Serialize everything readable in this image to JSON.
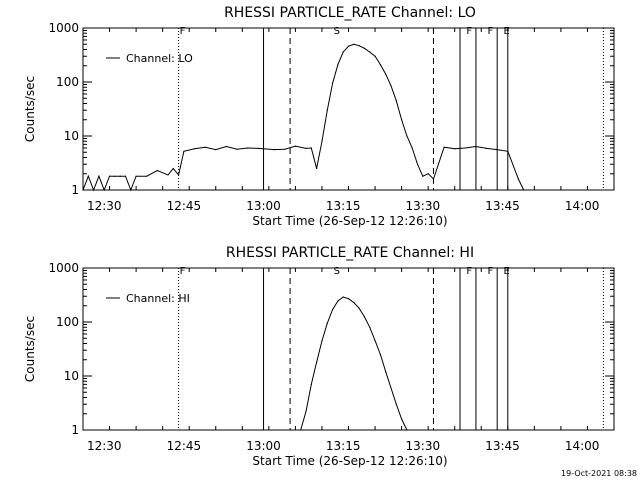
{
  "chart_data": [
    {
      "type": "line",
      "title": "RHESSI PARTICLE_RATE Channel: LO",
      "xlabel": "Start Time (26-Sep-12 12:26:10)",
      "ylabel": "Counts/sec",
      "y_scale": "log",
      "ylim": [
        1,
        1000
      ],
      "xlim": [
        "12:26",
        "14:06"
      ],
      "x_ticks": [
        "12:30",
        "12:45",
        "13:00",
        "13:15",
        "13:30",
        "13:45",
        "14:00"
      ],
      "y_ticks": [
        "1",
        "10",
        "100",
        "1000"
      ],
      "legend": {
        "label": "Channel: LO",
        "position": "top-left"
      },
      "flags": [
        {
          "label": "F",
          "time": "12:44"
        },
        {
          "label": "S",
          "time": "13:13"
        },
        {
          "label": "F",
          "time": "13:38"
        },
        {
          "label": "F",
          "time": "13:42"
        },
        {
          "label": "E",
          "time": "13:45"
        }
      ],
      "series": [
        {
          "x": [
            "12:26",
            "12:27",
            "12:28",
            "12:29",
            "12:30",
            "12:31",
            "12:32",
            "12:33",
            "12:34",
            "12:35",
            "12:36",
            "12:38",
            "12:40",
            "12:42",
            "12:43",
            "12:44",
            "12:45",
            "12:47",
            "12:49",
            "12:51",
            "12:53",
            "12:55",
            "12:57",
            "12:59",
            "13:00",
            "13:02",
            "13:04",
            "13:06",
            "13:08",
            "13:09",
            "13:10",
            "13:11",
            "13:12",
            "13:13",
            "13:14",
            "13:15",
            "13:16",
            "13:17",
            "13:18",
            "13:19",
            "13:20",
            "13:21",
            "13:22",
            "13:23",
            "13:24",
            "13:25",
            "13:26",
            "13:27",
            "13:28",
            "13:29",
            "13:30",
            "13:31",
            "13:32",
            "13:34",
            "13:36",
            "13:38",
            "13:40",
            "13:42",
            "13:44",
            "13:46",
            "13:48",
            "13:49"
          ],
          "y": [
            1.0,
            1.8,
            1.0,
            1.8,
            1.0,
            1.8,
            1.8,
            1.8,
            1.8,
            1.0,
            1.8,
            1.8,
            2.3,
            1.9,
            2.5,
            1.9,
            5.2,
            5.8,
            6.2,
            5.6,
            6.4,
            5.7,
            6.0,
            5.9,
            5.8,
            5.6,
            5.7,
            6.5,
            5.9,
            6.0,
            2.5,
            8.0,
            30,
            95,
            210,
            360,
            460,
            500,
            470,
            420,
            360,
            300,
            210,
            140,
            85,
            45,
            20,
            10,
            6.0,
            3.0,
            1.8,
            2.0,
            1.6,
            6.2,
            5.8,
            6.0,
            6.4,
            5.9,
            5.6,
            5.2,
            1.6,
            1.0
          ]
        }
      ]
    },
    {
      "type": "line",
      "title": "RHESSI PARTICLE_RATE Channel: HI",
      "xlabel": "Start Time (26-Sep-12 12:26:10)",
      "ylabel": "Counts/sec",
      "y_scale": "log",
      "ylim": [
        1,
        1000
      ],
      "xlim": [
        "12:26",
        "14:06"
      ],
      "x_ticks": [
        "12:30",
        "12:45",
        "13:00",
        "13:15",
        "13:30",
        "13:45",
        "14:00"
      ],
      "y_ticks": [
        "1",
        "10",
        "100",
        "1000"
      ],
      "legend": {
        "label": "Channel: HI",
        "position": "top-left"
      },
      "flags": [
        {
          "label": "F",
          "time": "12:44"
        },
        {
          "label": "S",
          "time": "13:13"
        },
        {
          "label": "F",
          "time": "13:38"
        },
        {
          "label": "F",
          "time": "13:42"
        },
        {
          "label": "E",
          "time": "13:45"
        }
      ],
      "series": [
        {
          "x": [
            "13:07",
            "13:08",
            "13:09",
            "13:10",
            "13:11",
            "13:12",
            "13:13",
            "13:14",
            "13:15",
            "13:16",
            "13:17",
            "13:18",
            "13:19",
            "13:20",
            "13:21",
            "13:22",
            "13:23",
            "13:24",
            "13:25",
            "13:26",
            "13:27"
          ],
          "y": [
            1.0,
            2.2,
            7,
            18,
            45,
            95,
            170,
            245,
            290,
            270,
            230,
            180,
            125,
            80,
            45,
            25,
            12,
            6,
            3,
            1.6,
            1.0
          ]
        }
      ]
    }
  ],
  "timestamp": "19-Oct-2021 08:38"
}
